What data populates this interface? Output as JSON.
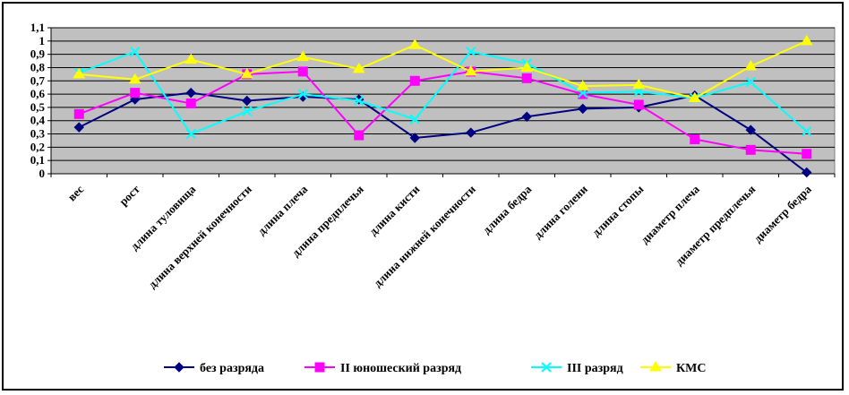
{
  "chart_data": {
    "type": "line",
    "title": "",
    "xlabel": "",
    "ylabel": "",
    "ylim": [
      0,
      1.1
    ],
    "yticks": [
      "0",
      "0,1",
      "0,2",
      "0,3",
      "0,4",
      "0,5",
      "0,6",
      "0,7",
      "0,8",
      "0,9",
      "1",
      "1,1"
    ],
    "grid": true,
    "legend_position": "bottom",
    "categories": [
      "вес",
      "рост",
      "длина туловища",
      "длина верхней конечности",
      "длина плеча",
      "длина предплечья",
      "длина кисти",
      "длина нижней конечности",
      "длина бедра",
      "длина голени",
      "длина стопы",
      "диаметр плеча",
      "диаметр предплечья",
      "диаметр бедра"
    ],
    "series": [
      {
        "name": "без разряда",
        "color": "#000080",
        "marker": "diamond",
        "values": [
          0.35,
          0.56,
          0.61,
          0.55,
          0.58,
          0.56,
          0.27,
          0.31,
          0.43,
          0.49,
          0.5,
          0.59,
          0.33,
          0.01
        ]
      },
      {
        "name": "II юношеский разряд",
        "color": "#FF00FF",
        "marker": "square",
        "values": [
          0.45,
          0.61,
          0.53,
          0.75,
          0.77,
          0.29,
          0.7,
          0.77,
          0.72,
          0.6,
          0.52,
          0.26,
          0.18,
          0.15
        ]
      },
      {
        "name": "III разряд",
        "color": "#00FFFF",
        "marker": "x",
        "values": [
          0.76,
          0.92,
          0.3,
          0.47,
          0.6,
          0.55,
          0.41,
          0.92,
          0.83,
          0.61,
          0.62,
          0.57,
          0.69,
          0.32
        ]
      },
      {
        "name": "КМС",
        "color": "#FFFF00",
        "marker": "triangle",
        "values": [
          0.75,
          0.71,
          0.86,
          0.75,
          0.88,
          0.79,
          0.97,
          0.77,
          0.8,
          0.66,
          0.67,
          0.57,
          0.81,
          1.0
        ]
      }
    ],
    "plot_background": "#C0C0C0"
  }
}
